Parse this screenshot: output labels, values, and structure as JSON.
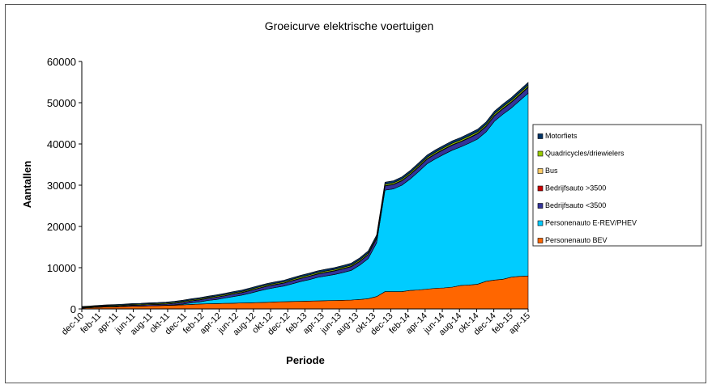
{
  "chart_data": {
    "type": "area",
    "stacked": true,
    "title": "Groeicurve elektrische voertuigen",
    "xlabel": "Periode",
    "ylabel": "Aantallen",
    "ylim": [
      0,
      60000
    ],
    "yticks": [
      "0",
      "10000",
      "20000",
      "30000",
      "40000",
      "50000",
      "60000"
    ],
    "xtick_labels": [
      "dec-10",
      "feb-11",
      "apr-11",
      "jun-11",
      "aug-11",
      "okt-11",
      "dec-11",
      "feb-12",
      "apr-12",
      "jun-12",
      "aug-12",
      "okt-12",
      "dec-12",
      "feb-13",
      "apr-13",
      "jun-13",
      "aug-13",
      "okt-13",
      "dec-13",
      "feb-14",
      "apr-14",
      "jun-14",
      "aug-14",
      "okt-14",
      "dec-14",
      "feb-15",
      "apr-15"
    ],
    "grid": false,
    "legend_position": "right",
    "series": [
      {
        "name": "Personenauto BEV",
        "color": "#ff6600",
        "values": [
          200,
          300,
          400,
          500,
          500,
          600,
          650,
          700,
          750,
          800,
          850,
          900,
          1000,
          1100,
          1200,
          1250,
          1300,
          1350,
          1400,
          1450,
          1500,
          1550,
          1600,
          1700,
          1750,
          1800,
          1850,
          1900,
          1950,
          2000,
          2050,
          2100,
          2150,
          2300,
          2500,
          3000,
          4200,
          4200,
          4200,
          4500,
          4600,
          4800,
          5000,
          5100,
          5300,
          5700,
          5800,
          6000,
          6700,
          7000,
          7200,
          7700,
          7900,
          8000
        ]
      },
      {
        "name": "Personenauto E-REV/PHEV",
        "color": "#00ccff",
        "values": [
          0,
          0,
          0,
          0,
          0,
          0,
          0,
          0,
          0,
          0,
          50,
          100,
          200,
          400,
          500,
          800,
          1000,
          1300,
          1600,
          1900,
          2300,
          2800,
          3200,
          3500,
          3800,
          4300,
          4800,
          5200,
          5700,
          6000,
          6300,
          6700,
          7200,
          8300,
          9700,
          13000,
          24600,
          24900,
          25800,
          27000,
          28700,
          30400,
          31400,
          32400,
          33200,
          33600,
          34400,
          35200,
          36200,
          38500,
          40000,
          41000,
          42600,
          44300
        ]
      },
      {
        "name": "Bedrijfsauto <3500",
        "color": "#333399",
        "values": [
          100,
          100,
          150,
          150,
          200,
          200,
          250,
          250,
          300,
          300,
          300,
          350,
          400,
          450,
          500,
          500,
          550,
          550,
          600,
          600,
          650,
          650,
          700,
          700,
          700,
          750,
          750,
          800,
          800,
          850,
          850,
          900,
          900,
          900,
          950,
          1000,
          1000,
          1050,
          1050,
          1100,
          1100,
          1100,
          1150,
          1150,
          1200,
          1200,
          1250,
          1250,
          1300,
          1300,
          1300,
          1350,
          1350,
          1400
        ]
      },
      {
        "name": "Bedrijfsauto >3500",
        "color": "#cc0000",
        "values": [
          5,
          5,
          5,
          5,
          10,
          10,
          10,
          10,
          10,
          10,
          15,
          15,
          15,
          15,
          20,
          20,
          20,
          20,
          25,
          25,
          25,
          25,
          30,
          30,
          30,
          30,
          30,
          35,
          35,
          35,
          35,
          40,
          40,
          40,
          40,
          45,
          45,
          45,
          45,
          50,
          50,
          50,
          50,
          55,
          55,
          55,
          55,
          60,
          60,
          60,
          60,
          60,
          65,
          65
        ]
      },
      {
        "name": "Bus",
        "color": "#ffcc66",
        "values": [
          5,
          5,
          5,
          5,
          5,
          5,
          10,
          10,
          10,
          10,
          10,
          10,
          15,
          15,
          15,
          15,
          15,
          20,
          20,
          20,
          20,
          20,
          25,
          25,
          25,
          25,
          30,
          30,
          30,
          30,
          30,
          35,
          35,
          35,
          35,
          40,
          40,
          40,
          40,
          45,
          45,
          45,
          45,
          50,
          50,
          50,
          50,
          55,
          55,
          55,
          55,
          60,
          60,
          60
        ]
      },
      {
        "name": "Quadricycles/driewielers",
        "color": "#99cc00",
        "values": [
          150,
          150,
          160,
          160,
          170,
          170,
          180,
          180,
          190,
          190,
          200,
          200,
          210,
          210,
          220,
          220,
          230,
          230,
          240,
          240,
          250,
          250,
          260,
          260,
          270,
          270,
          280,
          280,
          290,
          290,
          300,
          300,
          310,
          310,
          320,
          320,
          330,
          330,
          340,
          340,
          350,
          350,
          360,
          360,
          370,
          370,
          380,
          380,
          390,
          390,
          400,
          400,
          410,
          410
        ]
      },
      {
        "name": "Motorfiets",
        "color": "#003366",
        "values": [
          150,
          160,
          170,
          180,
          190,
          200,
          210,
          220,
          230,
          240,
          250,
          260,
          270,
          280,
          290,
          300,
          310,
          320,
          330,
          340,
          350,
          360,
          370,
          380,
          390,
          400,
          410,
          420,
          430,
          440,
          450,
          460,
          470,
          480,
          490,
          500,
          510,
          520,
          530,
          540,
          550,
          560,
          570,
          580,
          590,
          600,
          610,
          620,
          630,
          640,
          650,
          660,
          670,
          680
        ]
      }
    ]
  }
}
